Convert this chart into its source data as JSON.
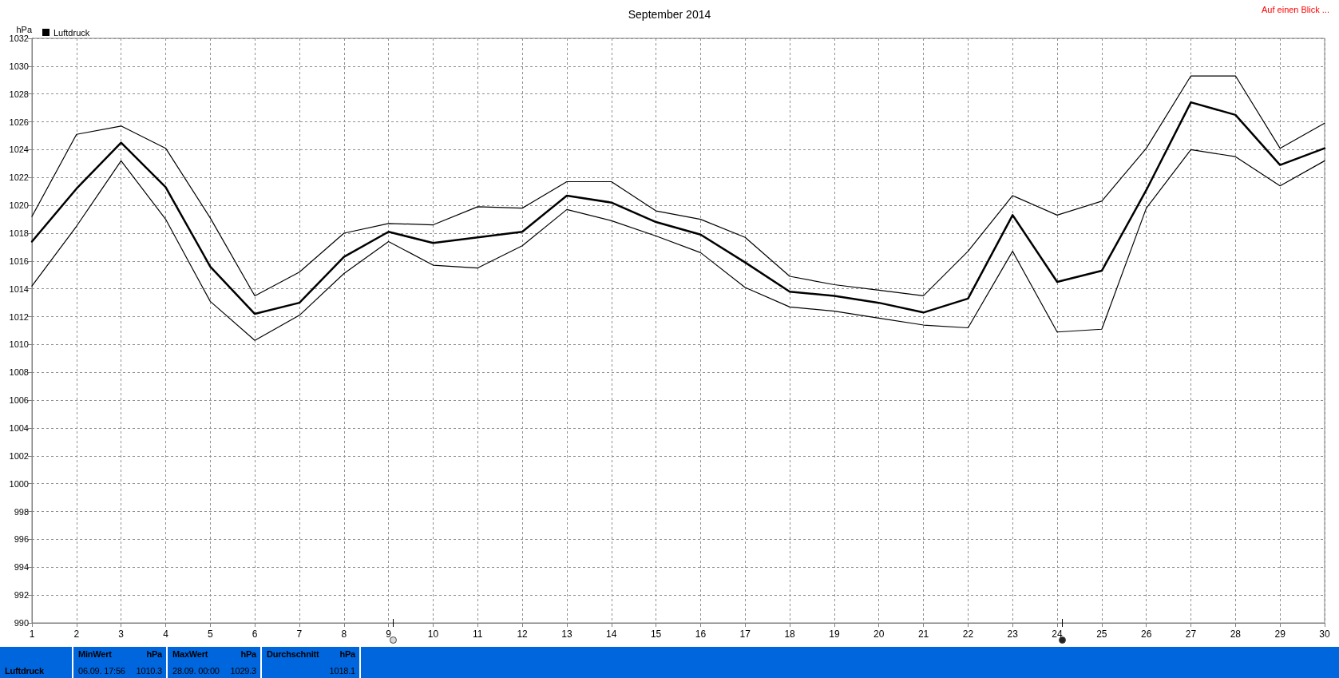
{
  "chart_data": {
    "type": "line",
    "title": "September 2014",
    "ylabel": "hPa",
    "annotations": [
      "Auf einen Blick ...",
      "Luftdruck",
      "MinWert",
      "hPa",
      "06.09.  17:56",
      "1010.3",
      "MaxWert",
      "hPa",
      "28.09.  00:00",
      "1029.3",
      "Durchschnitt",
      "hPa",
      "1018.1"
    ],
    "x": [
      1,
      2,
      3,
      4,
      5,
      6,
      7,
      8,
      9,
      10,
      11,
      12,
      13,
      14,
      15,
      16,
      17,
      18,
      19,
      20,
      21,
      22,
      23,
      24,
      25,
      26,
      27,
      28,
      29,
      30
    ],
    "series": [
      {
        "color": "#000000",
        "values": [
          1019.2,
          1025.1,
          1025.7,
          1024.1,
          1019.1,
          1013.5,
          1015.2,
          1018.0,
          1018.7,
          1018.6,
          1019.9,
          1019.8,
          1021.7,
          1021.7,
          1019.6,
          1019.0,
          1017.7,
          1014.9,
          1014.3,
          1013.9,
          1013.5,
          1016.7,
          1020.7,
          1019.3,
          1020.3,
          1024.1,
          1029.3,
          1029.3,
          1024.1,
          1025.9
        ]
      },
      {
        "name": "Luftdruck",
        "color": "#000000",
        "values": [
          1017.4,
          1021.2,
          1024.5,
          1021.3,
          1015.6,
          1012.2,
          1013.0,
          1016.3,
          1018.1,
          1017.3,
          1017.7,
          1018.1,
          1020.7,
          1020.2,
          1018.8,
          1017.9,
          1015.9,
          1013.8,
          1013.5,
          1013.0,
          1012.3,
          1013.3,
          1019.3,
          1014.5,
          1015.3,
          1021.1,
          1027.4,
          1026.5,
          1022.9,
          1024.1
        ]
      },
      {
        "color": "#000000",
        "values": [
          1014.2,
          1018.5,
          1023.2,
          1019.0,
          1013.1,
          1010.3,
          1012.1,
          1015.1,
          1017.4,
          1015.7,
          1015.5,
          1017.1,
          1019.7,
          1018.9,
          1017.8,
          1016.6,
          1014.1,
          1012.7,
          1012.4,
          1011.9,
          1011.4,
          1011.2,
          1016.7,
          1010.9,
          1011.1,
          1019.8,
          1024.0,
          1023.5,
          1021.4,
          1023.2
        ]
      }
    ],
    "xlim": [
      1,
      30
    ],
    "xticks": [
      1,
      2,
      3,
      4,
      5,
      6,
      7,
      8,
      9,
      10,
      11,
      12,
      13,
      14,
      15,
      16,
      17,
      18,
      19,
      20,
      21,
      22,
      23,
      24,
      25,
      26,
      27,
      28,
      29,
      30
    ],
    "ylim": [
      990,
      1032
    ],
    "yticks": [
      990,
      992,
      994,
      996,
      998,
      1000,
      1002,
      1004,
      1006,
      1008,
      1010,
      1012,
      1014,
      1016,
      1018,
      1020,
      1022,
      1024,
      1026,
      1028,
      1030,
      1032
    ],
    "grid": true,
    "legend": "top left",
    "marker": "none",
    "line_style": "solid"
  }
}
